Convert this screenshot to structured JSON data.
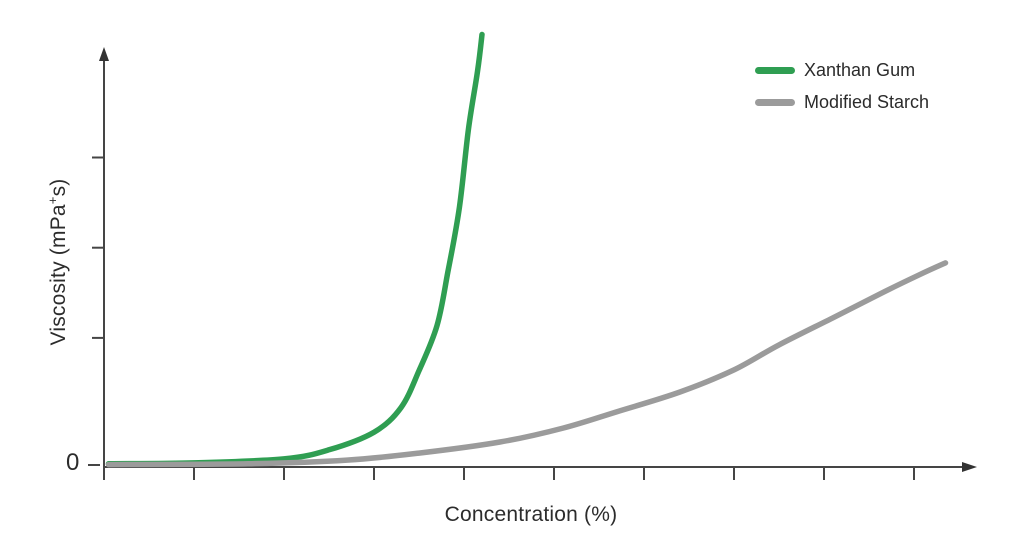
{
  "page": {
    "background_color": "#ffffff",
    "text_color": "#2c2c2c",
    "axis_color": "#454545"
  },
  "chart": {
    "x_axis": {
      "label": "Concentration (%)",
      "origin_label": "0",
      "tick_labels": []
    },
    "y_axis": {
      "label_prefix": "Viscosity (mPa",
      "label_sup": "+",
      "label_suffix": "s)",
      "label_full": "Viscosity (mPa⁺s)",
      "tick_labels": []
    },
    "legend": [
      {
        "label": "Xanthan Gum",
        "color": "#2f9e52"
      },
      {
        "label": "Modified Starch",
        "color": "#9b9b9b"
      }
    ]
  },
  "chart_data": {
    "type": "line",
    "title": "",
    "xlabel": "Concentration (%)",
    "ylabel": "Viscosity (mPa⁺s)",
    "x_unit": "relative concentration; 9 unlabeled ticks at 1..9",
    "y_unit": "relative viscosity; 0-100 spans axis height; only origin labeled 0",
    "xlim": [
      0,
      9.6
    ],
    "ylim": [
      0,
      100
    ],
    "grid": false,
    "legend_position": "top-right",
    "layout": {
      "x_tick_units": [
        1,
        2,
        3,
        4,
        5,
        6,
        7,
        8,
        9
      ],
      "y_tick_units": [
        31,
        53,
        75
      ]
    },
    "series": [
      {
        "name": "Xanthan Gum",
        "color": "#2f9e52",
        "points": [
          [
            0.05,
            0.3
          ],
          [
            1.0,
            0.5
          ],
          [
            2.0,
            1.5
          ],
          [
            2.5,
            3.7
          ],
          [
            3.0,
            8.0
          ],
          [
            3.3,
            14.0
          ],
          [
            3.5,
            23.0
          ],
          [
            3.7,
            34.0
          ],
          [
            3.82,
            47.0
          ],
          [
            3.95,
            63.0
          ],
          [
            4.05,
            82.0
          ],
          [
            4.15,
            96.0
          ],
          [
            4.2,
            105.0
          ]
        ]
      },
      {
        "name": "Modified Starch",
        "color": "#9b9b9b",
        "points": [
          [
            0.05,
            0.1
          ],
          [
            1.6,
            0.3
          ],
          [
            2.7,
            1.2
          ],
          [
            3.5,
            2.9
          ],
          [
            4.4,
            5.6
          ],
          [
            5.1,
            9.0
          ],
          [
            5.7,
            13.0
          ],
          [
            6.4,
            17.8
          ],
          [
            7.0,
            23.2
          ],
          [
            7.5,
            29.3
          ],
          [
            8.1,
            35.9
          ],
          [
            8.6,
            41.5
          ],
          [
            9.05,
            46.3
          ],
          [
            9.35,
            49.3
          ]
        ]
      }
    ]
  }
}
